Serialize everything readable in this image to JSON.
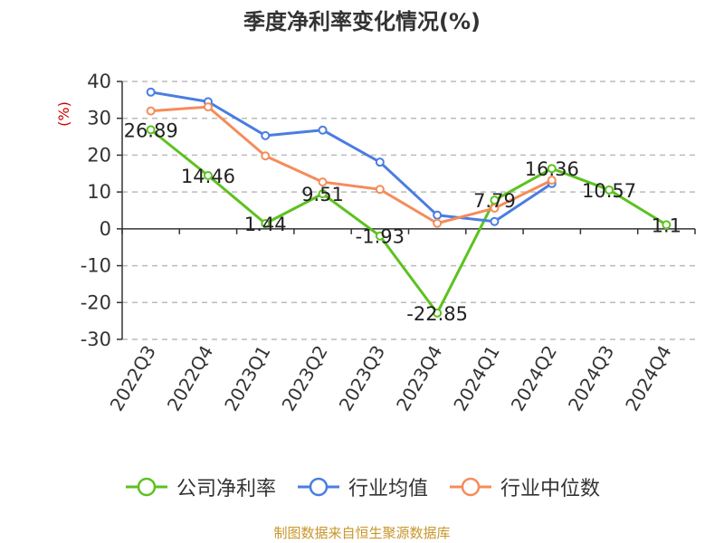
{
  "chart_data": {
    "type": "line",
    "title": "季度净利率变化情况(%)",
    "ylabel": "(%)",
    "xlabel": "",
    "categories": [
      "2022Q3",
      "2022Q4",
      "2023Q1",
      "2023Q2",
      "2023Q3",
      "2023Q4",
      "2024Q1",
      "2024Q2",
      "2024Q3",
      "2024Q4"
    ],
    "ylim": [
      -30,
      40
    ],
    "yticks": [
      40,
      30,
      20,
      10,
      0,
      -10,
      -20,
      -30
    ],
    "grid": true,
    "legend_position": "bottom",
    "series": [
      {
        "name": "公司净利率",
        "color": "#5cc21f",
        "values": [
          26.89,
          14.46,
          1.44,
          9.51,
          -1.93,
          -22.85,
          7.79,
          16.36,
          10.57,
          1.1
        ],
        "labels": [
          "26.89",
          "14.46",
          "1.44",
          "9.51",
          "-1.93",
          "-22.85",
          "7.79",
          "16.36",
          "10.57",
          "1.1"
        ]
      },
      {
        "name": "行业均值",
        "color": "#4a7de0",
        "values": [
          37.1,
          34.5,
          25.3,
          26.8,
          18.1,
          3.7,
          2.0,
          12.3,
          null,
          null
        ]
      },
      {
        "name": "行业中位数",
        "color": "#f58c5a",
        "values": [
          32.0,
          33.1,
          19.8,
          12.7,
          10.7,
          1.5,
          5.6,
          13.2,
          null,
          null
        ]
      }
    ]
  },
  "source_note": "制图数据来自恒生聚源数据库",
  "source_note_color": "#c8962a",
  "ylabel_color": "#cc0000"
}
